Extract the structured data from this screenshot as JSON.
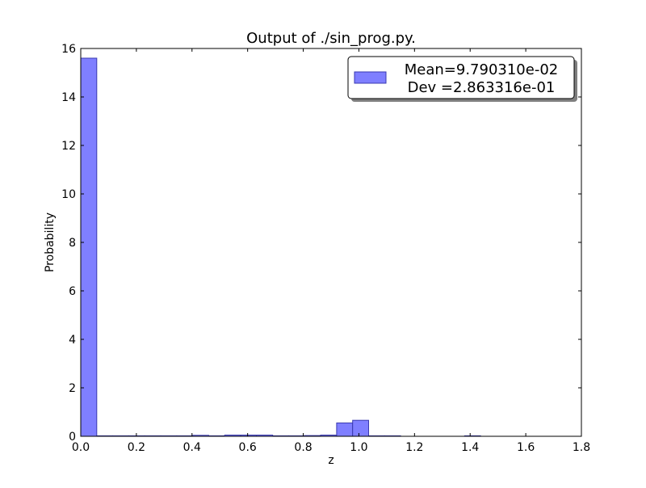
{
  "chart_data": {
    "type": "bar",
    "title": "Output of ./sin_prog.py.",
    "xlabel": "z",
    "ylabel": "Probability",
    "xlim": [
      0,
      1.8
    ],
    "ylim": [
      0,
      16
    ],
    "x_ticks": [
      0.0,
      0.2,
      0.4,
      0.6,
      0.8,
      1.0,
      1.2,
      1.4,
      1.6,
      1.8
    ],
    "x_tick_labels": [
      "0.0",
      "0.2",
      "0.4",
      "0.6",
      "0.8",
      "1.0",
      "1.2",
      "1.4",
      "1.6",
      "1.8"
    ],
    "y_ticks": [
      0,
      2,
      4,
      6,
      8,
      10,
      12,
      14,
      16
    ],
    "y_tick_labels": [
      "0",
      "2",
      "4",
      "6",
      "8",
      "10",
      "12",
      "14",
      "16"
    ],
    "bin_width": 0.0575,
    "bin_edges_start": 0.0,
    "values": [
      15.6,
      0.02,
      0.02,
      0.02,
      0.02,
      0.02,
      0.02,
      0.04,
      0.02,
      0.05,
      0.05,
      0.05,
      0.02,
      0.02,
      0.03,
      0.05,
      0.55,
      0.66,
      0.02,
      0.02,
      0.0,
      0.0,
      0.0,
      0.0,
      0.02
    ],
    "bar_color": "#7f7fff",
    "bar_edge_color": "#3a3ab0",
    "grid": false,
    "legend": {
      "placement": "top-right",
      "entries": [
        "Mean=9.790310e-02",
        "Dev =2.863316e-01"
      ]
    }
  }
}
